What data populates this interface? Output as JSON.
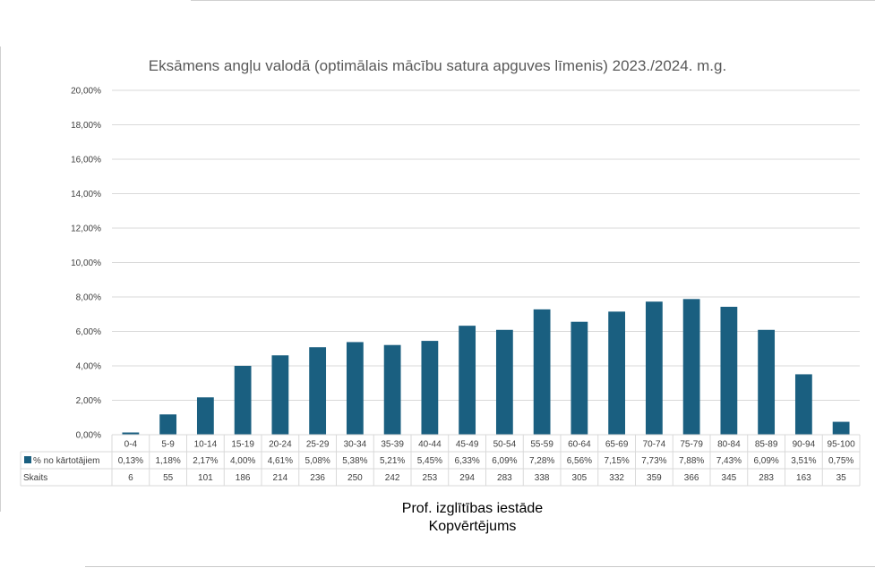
{
  "chart_data": {
    "type": "bar",
    "title": "Eksāmens angļu valodā (optimālais mācību satura apguves līmenis) 2023./2024. m.g.",
    "categories": [
      "0-4",
      "5-9",
      "10-14",
      "15-19",
      "20-24",
      "25-29",
      "30-34",
      "35-39",
      "40-44",
      "45-49",
      "50-54",
      "55-59",
      "60-64",
      "65-69",
      "70-74",
      "75-79",
      "80-84",
      "85-89",
      "90-94",
      "95-100"
    ],
    "series": [
      {
        "name": "% no kārtotājiem",
        "values": [
          0.13,
          1.18,
          2.17,
          4.0,
          4.61,
          5.08,
          5.38,
          5.21,
          5.45,
          6.33,
          6.09,
          7.28,
          6.56,
          7.15,
          7.73,
          7.88,
          7.43,
          6.09,
          3.51,
          0.75
        ],
        "labels": [
          "0,13%",
          "1,18%",
          "2,17%",
          "4,00%",
          "4,61%",
          "5,08%",
          "5,38%",
          "5,21%",
          "5,45%",
          "6,33%",
          "6,09%",
          "7,28%",
          "6,56%",
          "7,15%",
          "7,73%",
          "7,88%",
          "7,43%",
          "6,09%",
          "3,51%",
          "0,75%"
        ],
        "color": "#1a5f80"
      }
    ],
    "table_rows": [
      {
        "label": "Skaits",
        "values": [
          "6",
          "55",
          "101",
          "186",
          "214",
          "236",
          "250",
          "242",
          "253",
          "294",
          "283",
          "338",
          "305",
          "332",
          "359",
          "366",
          "345",
          "283",
          "163",
          "35"
        ]
      }
    ],
    "ylim": [
      0,
      20
    ],
    "yticks": [
      "0,00%",
      "2,00%",
      "4,00%",
      "6,00%",
      "8,00%",
      "10,00%",
      "12,00%",
      "14,00%",
      "16,00%",
      "18,00%",
      "20,00%"
    ],
    "grid": true,
    "legend": "data-table",
    "caption": [
      "Prof. izglītības iestāde",
      "Kopvērtējums"
    ]
  }
}
